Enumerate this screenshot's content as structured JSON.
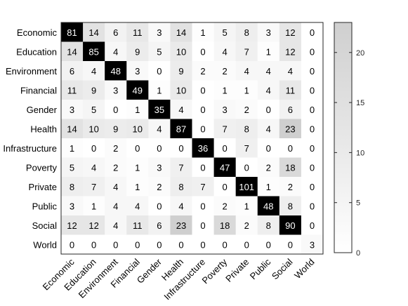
{
  "chart_data": {
    "type": "heatmap",
    "title": "",
    "xlabel": "",
    "ylabel": "",
    "rows": [
      "Economic",
      "Education",
      "Environment",
      "Financial",
      "Gender",
      "Health",
      "Infrastructure",
      "Poverty",
      "Private",
      "Public",
      "Social",
      "World"
    ],
    "columns": [
      "Economic",
      "Education",
      "Environment",
      "Financial",
      "Gender",
      "Health",
      "Infrastructure",
      "Poverty",
      "Private",
      "Public",
      "Social",
      "World"
    ],
    "values": [
      [
        81,
        14,
        6,
        11,
        3,
        14,
        1,
        5,
        8,
        3,
        12,
        0
      ],
      [
        14,
        85,
        4,
        9,
        5,
        10,
        0,
        4,
        7,
        1,
        12,
        0
      ],
      [
        6,
        4,
        48,
        3,
        0,
        9,
        2,
        2,
        4,
        4,
        4,
        0
      ],
      [
        11,
        9,
        3,
        49,
        1,
        10,
        0,
        1,
        1,
        4,
        11,
        0
      ],
      [
        3,
        5,
        0,
        1,
        35,
        4,
        0,
        3,
        2,
        0,
        6,
        0
      ],
      [
        14,
        10,
        9,
        10,
        4,
        87,
        0,
        7,
        8,
        4,
        23,
        0
      ],
      [
        1,
        0,
        2,
        0,
        0,
        0,
        36,
        0,
        7,
        0,
        0,
        0
      ],
      [
        5,
        4,
        2,
        1,
        3,
        7,
        0,
        47,
        0,
        2,
        18,
        0
      ],
      [
        8,
        7,
        4,
        1,
        2,
        8,
        7,
        0,
        101,
        1,
        2,
        0
      ],
      [
        3,
        1,
        4,
        4,
        0,
        4,
        0,
        2,
        1,
        48,
        8,
        0
      ],
      [
        12,
        12,
        4,
        11,
        6,
        23,
        0,
        18,
        2,
        8,
        90,
        0
      ],
      [
        0,
        0,
        0,
        0,
        0,
        0,
        0,
        0,
        0,
        0,
        0,
        3
      ]
    ],
    "colorbar": {
      "range": [
        0,
        23
      ],
      "ticks": [
        0,
        5,
        10,
        15,
        20
      ],
      "colormap": "gray-reversed",
      "low_color": "#ffffff",
      "high_color": "#cfcfcf",
      "saturated_color": "#000000"
    },
    "grid": false,
    "legend": "colorbar-right"
  }
}
